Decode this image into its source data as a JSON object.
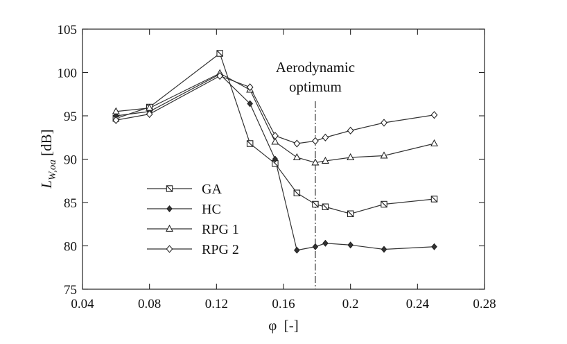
{
  "chart_data": {
    "type": "line",
    "xlabel": "φ  [-]",
    "ylabel": "L",
    "ylabel_sub": "W,oa",
    "ylabel_unit": " [dB]",
    "xlim": [
      0.04,
      0.28
    ],
    "ylim": [
      75,
      105
    ],
    "x_ticks": [
      0.04,
      0.08,
      0.12,
      0.16,
      0.2,
      0.24,
      0.28
    ],
    "x_tick_labels": [
      "0.04",
      "0.08",
      "0.12",
      "0.16",
      "0.2",
      "0.24",
      "0.28"
    ],
    "y_ticks": [
      75,
      80,
      85,
      90,
      95,
      100,
      105
    ],
    "y_tick_labels": [
      "75",
      "80",
      "85",
      "90",
      "95",
      "100",
      "105"
    ],
    "grid": false,
    "legend_position": "left",
    "annotation": {
      "line1": "Aerodynamic",
      "line2": "optimum",
      "x": 0.179
    },
    "series": [
      {
        "name": "GA",
        "marker": "square-cross",
        "x": [
          0.06,
          0.08,
          0.122,
          0.14,
          0.155,
          0.168,
          0.179,
          0.185,
          0.2,
          0.22,
          0.25
        ],
        "y": [
          94.7,
          96.0,
          102.2,
          91.8,
          89.5,
          86.1,
          84.8,
          84.5,
          83.7,
          84.8,
          85.4
        ]
      },
      {
        "name": "HC",
        "marker": "diamond-filled",
        "x": [
          0.06,
          0.08,
          0.122,
          0.14,
          0.155,
          0.168,
          0.179,
          0.185,
          0.2,
          0.22,
          0.25
        ],
        "y": [
          95.0,
          95.5,
          99.8,
          96.4,
          90.0,
          79.5,
          79.9,
          80.3,
          80.1,
          79.6,
          79.9
        ]
      },
      {
        "name": "RPG 1",
        "marker": "triangle",
        "x": [
          0.06,
          0.08,
          0.122,
          0.14,
          0.155,
          0.168,
          0.179,
          0.185,
          0.2,
          0.22,
          0.25
        ],
        "y": [
          95.5,
          95.9,
          99.9,
          98.0,
          92.0,
          90.2,
          89.6,
          89.8,
          90.2,
          90.4,
          91.8
        ]
      },
      {
        "name": "RPG 2",
        "marker": "diamond-open",
        "x": [
          0.06,
          0.08,
          0.122,
          0.14,
          0.155,
          0.168,
          0.179,
          0.185,
          0.2,
          0.22,
          0.25
        ],
        "y": [
          94.5,
          95.2,
          99.6,
          98.3,
          92.7,
          91.8,
          92.1,
          92.5,
          93.3,
          94.2,
          95.1
        ]
      }
    ]
  }
}
